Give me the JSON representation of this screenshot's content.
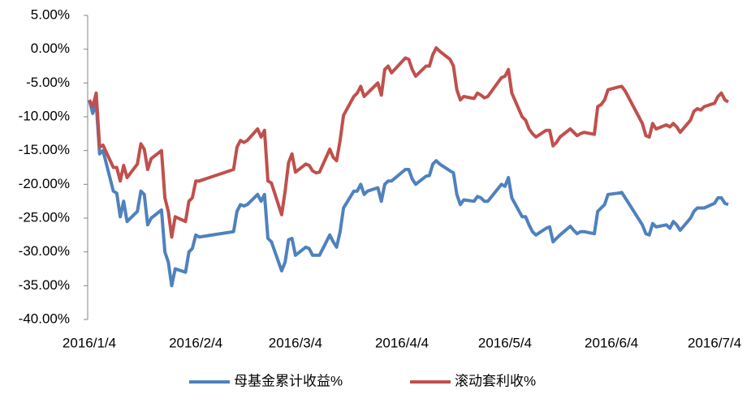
{
  "chart_data": {
    "type": "line",
    "x": [
      "2016/1/4",
      "2016/1/5",
      "2016/1/6",
      "2016/1/7",
      "2016/1/8",
      "2016/1/11",
      "2016/1/12",
      "2016/1/13",
      "2016/1/14",
      "2016/1/15",
      "2016/1/18",
      "2016/1/19",
      "2016/1/20",
      "2016/1/21",
      "2016/1/22",
      "2016/1/25",
      "2016/1/26",
      "2016/1/27",
      "2016/1/28",
      "2016/1/29",
      "2016/2/1",
      "2016/2/2",
      "2016/2/3",
      "2016/2/4",
      "2016/2/5",
      "2016/2/15",
      "2016/2/16",
      "2016/2/17",
      "2016/2/18",
      "2016/2/19",
      "2016/2/22",
      "2016/2/23",
      "2016/2/24",
      "2016/2/25",
      "2016/2/26",
      "2016/2/29",
      "2016/3/1",
      "2016/3/2",
      "2016/3/3",
      "2016/3/4",
      "2016/3/7",
      "2016/3/8",
      "2016/3/9",
      "2016/3/10",
      "2016/3/11",
      "2016/3/14",
      "2016/3/15",
      "2016/3/16",
      "2016/3/17",
      "2016/3/18",
      "2016/3/21",
      "2016/3/22",
      "2016/3/23",
      "2016/3/24",
      "2016/3/25",
      "2016/3/28",
      "2016/3/29",
      "2016/3/30",
      "2016/3/31",
      "2016/4/1",
      "2016/4/5",
      "2016/4/6",
      "2016/4/7",
      "2016/4/8",
      "2016/4/11",
      "2016/4/12",
      "2016/4/13",
      "2016/4/14",
      "2016/4/15",
      "2016/4/18",
      "2016/4/19",
      "2016/4/20",
      "2016/4/21",
      "2016/4/22",
      "2016/4/25",
      "2016/4/26",
      "2016/4/27",
      "2016/4/28",
      "2016/4/29",
      "2016/5/3",
      "2016/5/4",
      "2016/5/5",
      "2016/5/6",
      "2016/5/9",
      "2016/5/10",
      "2016/5/11",
      "2016/5/12",
      "2016/5/13",
      "2016/5/16",
      "2016/5/17",
      "2016/5/18",
      "2016/5/19",
      "2016/5/20",
      "2016/5/23",
      "2016/5/24",
      "2016/5/25",
      "2016/5/26",
      "2016/5/27",
      "2016/5/30",
      "2016/5/31",
      "2016/6/1",
      "2016/6/2",
      "2016/6/3",
      "2016/6/6",
      "2016/6/7",
      "2016/6/8",
      "2016/6/13",
      "2016/6/14",
      "2016/6/15",
      "2016/6/16",
      "2016/6/17",
      "2016/6/20",
      "2016/6/21",
      "2016/6/22",
      "2016/6/23",
      "2016/6/24",
      "2016/6/27",
      "2016/6/28",
      "2016/6/29",
      "2016/6/30",
      "2016/7/1",
      "2016/7/4",
      "2016/7/5",
      "2016/7/6",
      "2016/7/7",
      "2016/7/8"
    ],
    "series": [
      {
        "name": "母基金累计收益%",
        "color": "#4f81bd",
        "values": [
          -7.5,
          -9.5,
          -8,
          -15.5,
          -15,
          -21,
          -21.3,
          -24.8,
          -22.5,
          -25.5,
          -24,
          -21,
          -21.5,
          -26,
          -25,
          -23.8,
          -30,
          -31.5,
          -35,
          -32.5,
          -33,
          -30,
          -29.5,
          -27.5,
          -27.8,
          -27,
          -24,
          -23,
          -23.2,
          -23,
          -21.5,
          -22.5,
          -21.5,
          -28,
          -28.5,
          -32.8,
          -31.5,
          -28.2,
          -28,
          -30.5,
          -29.3,
          -29.5,
          -30.5,
          -30.5,
          -30.5,
          -27.5,
          -28.5,
          -29.3,
          -27,
          -23.5,
          -21,
          -21,
          -20,
          -21.5,
          -21,
          -20.5,
          -22.5,
          -20,
          -19.5,
          -19.5,
          -17.8,
          -17.8,
          -19.2,
          -20,
          -18.8,
          -18.7,
          -17,
          -16.5,
          -17,
          -18,
          -18.3,
          -21.5,
          -23,
          -22.3,
          -22.5,
          -21.8,
          -22,
          -22.5,
          -22.5,
          -20,
          -20.3,
          -19,
          -22,
          -24.8,
          -24.8,
          -26,
          -27,
          -27.5,
          -26.5,
          -26.3,
          -28.5,
          -28,
          -27.5,
          -26.2,
          -26.8,
          -27.3,
          -27,
          -27,
          -27.3,
          -24,
          -23.5,
          -23,
          -21.5,
          -21.3,
          -21.2,
          -22,
          -26,
          -27.3,
          -27.5,
          -25.8,
          -26.3,
          -26,
          -26.5,
          -25.5,
          -26,
          -26.8,
          -25,
          -24,
          -23.5,
          -23.5,
          -23.5,
          -22.8,
          -22,
          -22,
          -22.8,
          -23
        ]
      },
      {
        "name": "滚动套利收%",
        "color": "#c0504d",
        "values": [
          -7.5,
          -8.5,
          -6.5,
          -14.5,
          -14.2,
          -17.5,
          -17.5,
          -19.5,
          -17.2,
          -19,
          -17,
          -14,
          -14.8,
          -17.8,
          -16.2,
          -15,
          -22,
          -24,
          -27.8,
          -24.8,
          -25.5,
          -22.5,
          -22,
          -19.5,
          -19.5,
          -17.8,
          -14.5,
          -13.5,
          -13.8,
          -13.5,
          -11.8,
          -13,
          -12,
          -19.5,
          -19.8,
          -24.5,
          -21,
          -16.8,
          -15.5,
          -18.2,
          -17,
          -17.2,
          -18,
          -18.3,
          -18.2,
          -14.8,
          -16,
          -16.5,
          -13.5,
          -9.8,
          -7,
          -6.5,
          -5.5,
          -7,
          -6.5,
          -5,
          -6.8,
          -3,
          -2.5,
          -3.5,
          -1.3,
          -1.5,
          -3,
          -4,
          -2.5,
          -2.5,
          -0.8,
          0.2,
          -0.3,
          -1.5,
          -2.5,
          -6,
          -7.5,
          -7,
          -7.3,
          -6.5,
          -6.8,
          -7.2,
          -7,
          -4.2,
          -4,
          -3,
          -6.5,
          -10,
          -10.5,
          -11.8,
          -12.5,
          -13,
          -12,
          -12,
          -14.3,
          -13.8,
          -13,
          -11.8,
          -12.3,
          -12.8,
          -12.5,
          -12.3,
          -12.6,
          -8.5,
          -8.2,
          -7.5,
          -6,
          -5.6,
          -5.5,
          -6.2,
          -11,
          -12.8,
          -13,
          -11,
          -11.8,
          -11.2,
          -11.5,
          -11,
          -11.5,
          -12.3,
          -10.5,
          -9.2,
          -8.8,
          -9,
          -8.5,
          -8,
          -7,
          -6.5,
          -7.5,
          -7.8
        ]
      }
    ],
    "xlim": [
      "2016/1/4",
      "2016/7/8"
    ],
    "xticks": [
      "2016/1/4",
      "2016/2/4",
      "2016/3/4",
      "2016/4/4",
      "2016/5/4",
      "2016/6/4",
      "2016/7/4"
    ],
    "ylim": [
      -40,
      5
    ],
    "yticks": [
      {
        "value": 5,
        "label": "5.00%"
      },
      {
        "value": 0,
        "label": "0.00%"
      },
      {
        "value": -5,
        "label": "-5.00%"
      },
      {
        "value": -10,
        "label": "-10.00%"
      },
      {
        "value": -15,
        "label": "-15.00%"
      },
      {
        "value": -20,
        "label": "-20.00%"
      },
      {
        "value": -25,
        "label": "-25.00%"
      },
      {
        "value": -30,
        "label": "-30.00%"
      },
      {
        "value": -35,
        "label": "-35.00%"
      },
      {
        "value": -40,
        "label": "-40.00%"
      }
    ],
    "grid": false,
    "legend": "bottom"
  }
}
